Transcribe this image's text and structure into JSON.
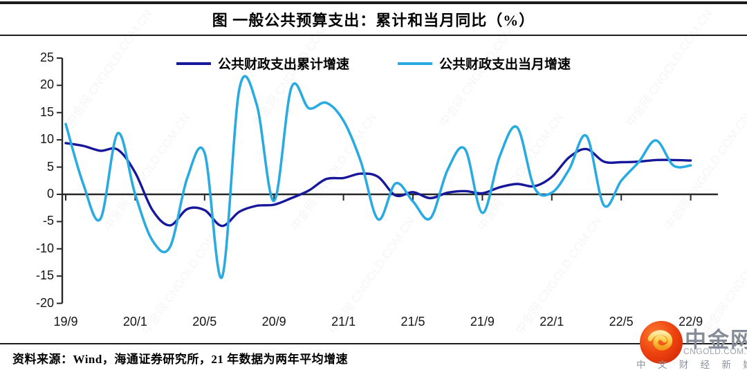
{
  "title": "图 一般公共预算支出：累计和当月同比（%）",
  "source_note": "资料来源：Wind，海通证券研究所，21 年数据为两年平均增速",
  "watermark": {
    "text": "中金网 CNGOLD.COM.CN"
  },
  "logo": {
    "name": "中金网",
    "domain": "CNGOLD.COM.CN",
    "tagline": "中 文 财 经 新 媒 体"
  },
  "colors": {
    "cumulative": "#17179B",
    "monthly": "#29ABE2",
    "axis": "#262626",
    "rule": "#1C1C1C",
    "logo_red": "#E8380D",
    "logo_gold": "#FFD24D",
    "logo_gray": "#868D98"
  },
  "chart_data": {
    "type": "line",
    "title": "图 一般公共预算支出：累计和当月同比（%）",
    "ylim": [
      -20,
      25
    ],
    "ytick_step": 5,
    "grid": false,
    "legend_position": "top-center",
    "x_axis_at_zero": true,
    "x_labels_shown": [
      "19/9",
      "20/1",
      "20/5",
      "20/9",
      "21/1",
      "21/5",
      "21/9",
      "22/1",
      "22/5",
      "22/9"
    ],
    "months": [
      "19/9",
      "19/10",
      "19/11",
      "19/12",
      "20/1",
      "20/2",
      "20/3",
      "20/4",
      "20/5",
      "20/6",
      "20/7",
      "20/8",
      "20/9",
      "20/10",
      "20/11",
      "20/12",
      "21/1",
      "21/2",
      "21/3",
      "21/4",
      "21/5",
      "21/6",
      "21/7",
      "21/8",
      "21/9",
      "21/10",
      "21/11",
      "21/12",
      "22/1",
      "22/2",
      "22/3",
      "22/4",
      "22/5",
      "22/6",
      "22/7",
      "22/8",
      "22/9"
    ],
    "series": [
      {
        "name": "公共财政支出累计增速",
        "color_key": "cumulative",
        "values": [
          9.4,
          8.9,
          8.0,
          8.2,
          4.0,
          -2.9,
          -5.7,
          -2.7,
          -2.9,
          -5.8,
          -3.2,
          -2.1,
          -1.9,
          -0.7,
          0.7,
          2.8,
          3.0,
          3.8,
          3.2,
          -0.2,
          0.4,
          -0.7,
          0.3,
          0.6,
          0.2,
          1.3,
          1.9,
          1.5,
          3.2,
          6.8,
          8.3,
          6.0,
          5.9,
          6.0,
          6.3,
          6.3,
          6.2
        ]
      },
      {
        "name": "公共财政支出当月增速",
        "color_key": "monthly",
        "values": [
          12.9,
          2.0,
          -4.5,
          11.2,
          0.0,
          -8.5,
          -9.7,
          3.0,
          7.6,
          -15.2,
          19.3,
          16.5,
          -1.2,
          19.6,
          15.8,
          16.8,
          13.5,
          6.0,
          -4.6,
          2.0,
          -1.3,
          -4.4,
          4.5,
          8.3,
          -3.4,
          7.0,
          12.3,
          1.2,
          0.3,
          4.6,
          10.7,
          -2.0,
          2.5,
          5.9,
          9.9,
          5.3,
          5.3
        ]
      }
    ]
  }
}
